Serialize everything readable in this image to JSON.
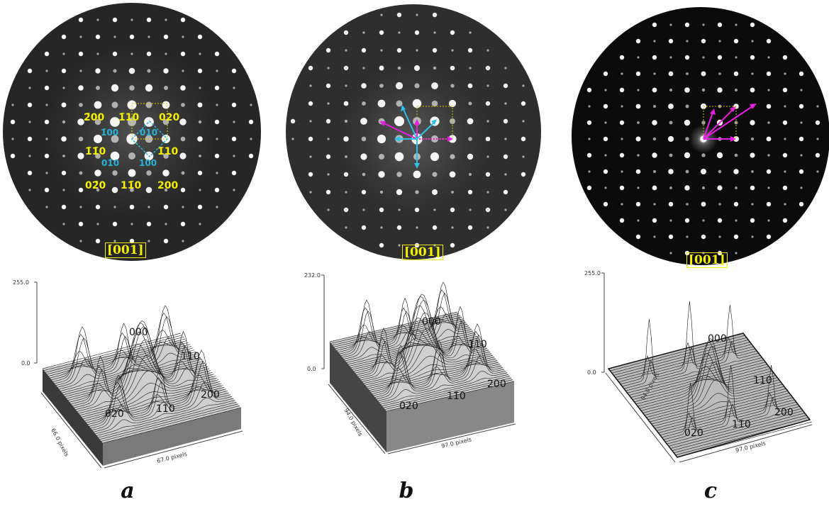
{
  "panels": [
    {
      "id": "a",
      "letter": "a",
      "zone_axis": "[001]",
      "background": "#262626",
      "spot_labels": {
        "l200bar": "2̄00",
        "l1bar10": "1̄10",
        "l020": "020",
        "l1bar1bar0": "1̄1̄0",
        "l110": "1̄10",
        "l0bar20": "02̄0",
        "l11bar0": "11̄0",
        "l200": "200",
        "c1bar00": "1̄00",
        "c010": "010",
        "c01bar0": "01̄0",
        "c100": "100"
      },
      "surface": {
        "zmax": "255.0",
        "zmin": "0.0",
        "xaxis": "67.0 pixels",
        "yaxis": "66.0 pixels",
        "labels": {
          "p000": "000",
          "p110": "110",
          "p020": "020",
          "p1bar10": "11̄0",
          "p200": "200"
        }
      }
    },
    {
      "id": "b",
      "letter": "b",
      "zone_axis": "[001]",
      "background": "#2e2e2e",
      "surface": {
        "zmax": "232.0",
        "zmin": "0.0",
        "xaxis": "97.0 pixels",
        "yaxis": "94.0 pixels",
        "labels": {
          "p000": "000",
          "p110": "110",
          "p020": "020",
          "p1bar10": "11̄0",
          "p200": "200"
        }
      }
    },
    {
      "id": "c",
      "letter": "c",
      "zone_axis": "[001]",
      "background": "#0b0b0b",
      "surface": {
        "zmax": "255.0",
        "zmin": "0.0",
        "xaxis": "97.0 pixels",
        "yaxis": "94.0 pixels",
        "labels": {
          "p000": "000",
          "p110": "110",
          "p020": "020",
          "p1bar10": "11̄0",
          "p200": "200"
        }
      }
    }
  ],
  "colors": {
    "yellow_label": "#f4f000",
    "cyan_label": "#27b4d6",
    "magenta_arrow": "#e81ee0",
    "cyan_arrow": "#2ec0e8",
    "spot": "#ffffff"
  },
  "icons": [
    "arrow-icon"
  ]
}
